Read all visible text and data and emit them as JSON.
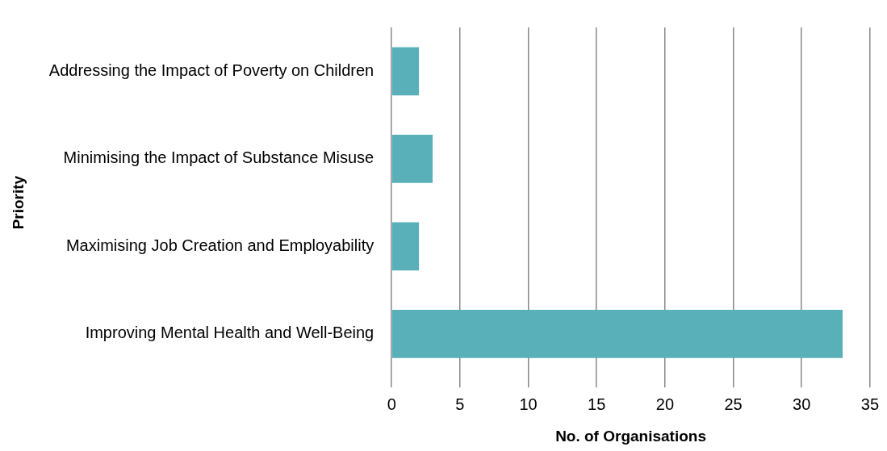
{
  "chart_data": {
    "type": "bar",
    "orientation": "horizontal",
    "categories": [
      "Addressing the Impact of Poverty on Children",
      "Minimising the Impact of Substance Misuse",
      "Maximising Job Creation and Employability",
      "Improving Mental Health and Well-Being"
    ],
    "values": [
      2,
      3,
      2,
      33
    ],
    "color": "#5ab0b9",
    "xlabel": "No. of Organisations",
    "ylabel": "Priority",
    "xlim": [
      0,
      35
    ],
    "xticks": [
      0,
      5,
      10,
      15,
      20,
      25,
      30,
      35
    ],
    "grid": "x",
    "legend": false
  }
}
